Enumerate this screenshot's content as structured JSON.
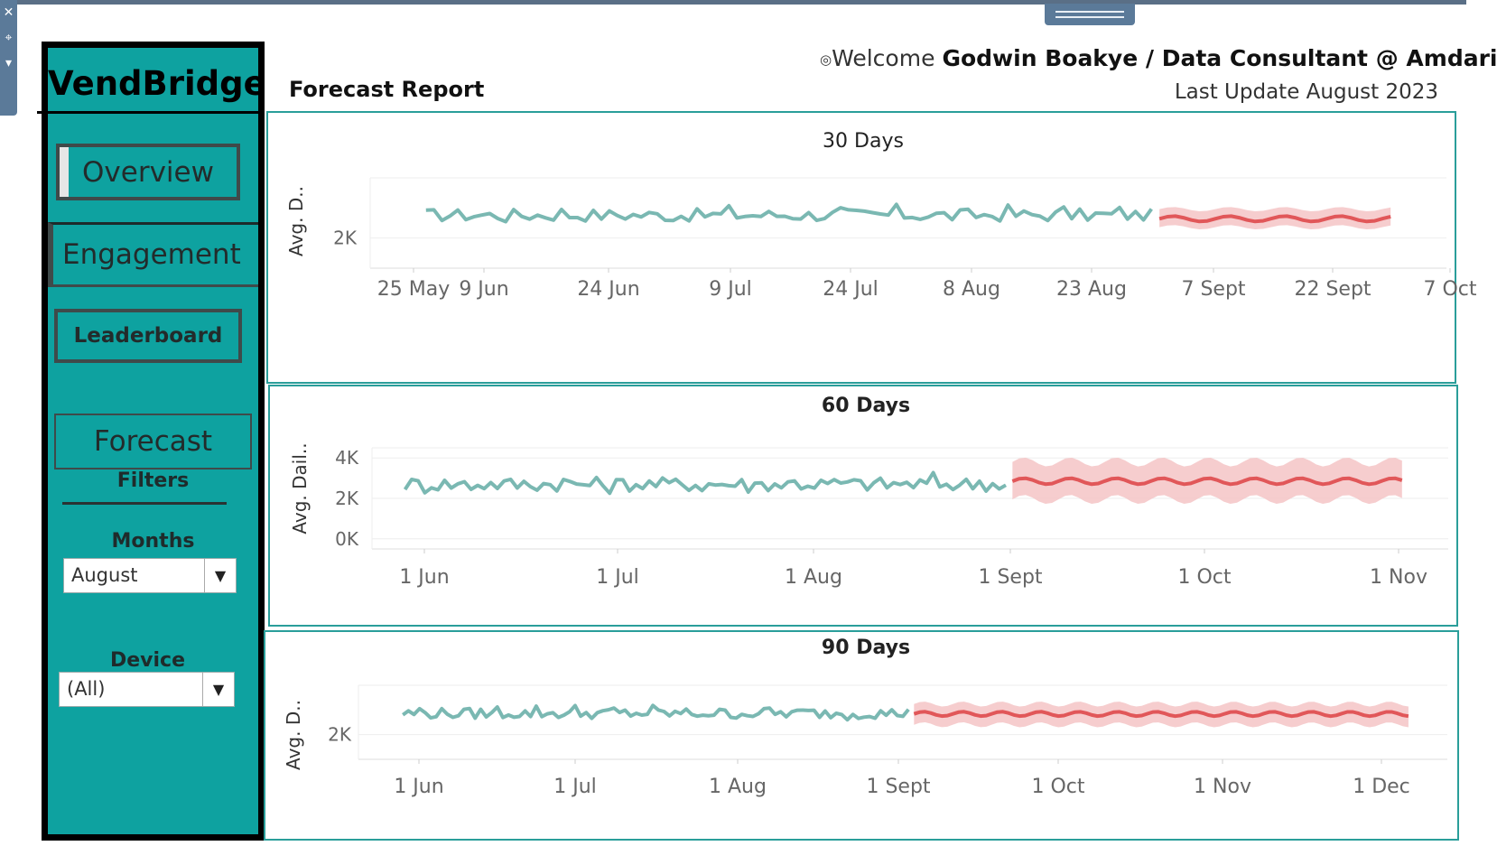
{
  "brand": "VendBridge",
  "window": {
    "left_rail_icons": [
      "close-icon",
      "pin-icon",
      "chevron-down-icon"
    ]
  },
  "nav": {
    "overview": "Overview",
    "engagement": "Engagement",
    "leaderboard": "Leaderboard",
    "forecast": "Forecast"
  },
  "filters": {
    "title": "Filters",
    "months_label": "Months",
    "months_value": "August",
    "device_label": "Device",
    "device_value": "(All)"
  },
  "header": {
    "welcome": "Welcome",
    "user": "Godwin Boakye / Data Consultant @ Amdari",
    "report_title": "Forecast Report",
    "last_update": "Last Update  August 2023"
  },
  "colors": {
    "sidebar": "#0ea2a0",
    "actual_line": "#7ab8b2",
    "forecast_line": "#e15759",
    "forecast_band": "#f4c4c5",
    "panel_border": "#2a9e9a"
  },
  "chart_data": [
    {
      "type": "line",
      "title": "30 Days",
      "ylabel": "Avg. D..",
      "yticks": [
        "2K"
      ],
      "xticks": [
        "25 May",
        "9 Jun",
        "24 Jun",
        "9 Jul",
        "24 Jul",
        "8 Aug",
        "23 Aug",
        "7 Sept",
        "22 Sept",
        "7 Oct"
      ],
      "x_range": [
        "2023-05-25",
        "2023-10-07"
      ],
      "y_range": [
        1500,
        3000
      ],
      "series": [
        {
          "role": "actual",
          "start": "2023-06-01",
          "end": "2023-08-31",
          "level": 2350
        },
        {
          "role": "forecast",
          "start": "2023-09-01",
          "end": "2023-09-30",
          "level": 2320,
          "band": [
            2180,
            2480
          ]
        }
      ]
    },
    {
      "type": "line",
      "title": "60 Days",
      "ylabel": "Avg. Dail..",
      "yticks": [
        "4K",
        "2K",
        "0K"
      ],
      "xticks": [
        "1 Jun",
        "1 Jul",
        "1 Aug",
        "1 Sept",
        "1 Oct",
        "1 Nov"
      ],
      "x_range": [
        "2023-05-27",
        "2023-11-06"
      ],
      "y_range": [
        -500,
        4500
      ],
      "series": [
        {
          "role": "actual",
          "start": "2023-06-01",
          "end": "2023-08-31",
          "level": 2600
        },
        {
          "role": "forecast",
          "start": "2023-09-01",
          "end": "2023-10-30",
          "level": 2850,
          "band": [
            1950,
            3800
          ]
        }
      ]
    },
    {
      "type": "line",
      "title": "90 Days",
      "ylabel": "Avg. D..",
      "yticks": [
        "2K"
      ],
      "xticks": [
        "1 Jun",
        "1 Jul",
        "1 Aug",
        "1 Sept",
        "1 Oct",
        "1 Nov",
        "1 Dec"
      ],
      "x_range": [
        "2023-05-24",
        "2023-12-06"
      ],
      "y_range": [
        1500,
        3000
      ],
      "series": [
        {
          "role": "actual",
          "start": "2023-06-01",
          "end": "2023-08-31",
          "level": 2400
        },
        {
          "role": "forecast",
          "start": "2023-09-01",
          "end": "2023-11-29",
          "level": 2420,
          "band": [
            2200,
            2620
          ]
        }
      ]
    }
  ]
}
